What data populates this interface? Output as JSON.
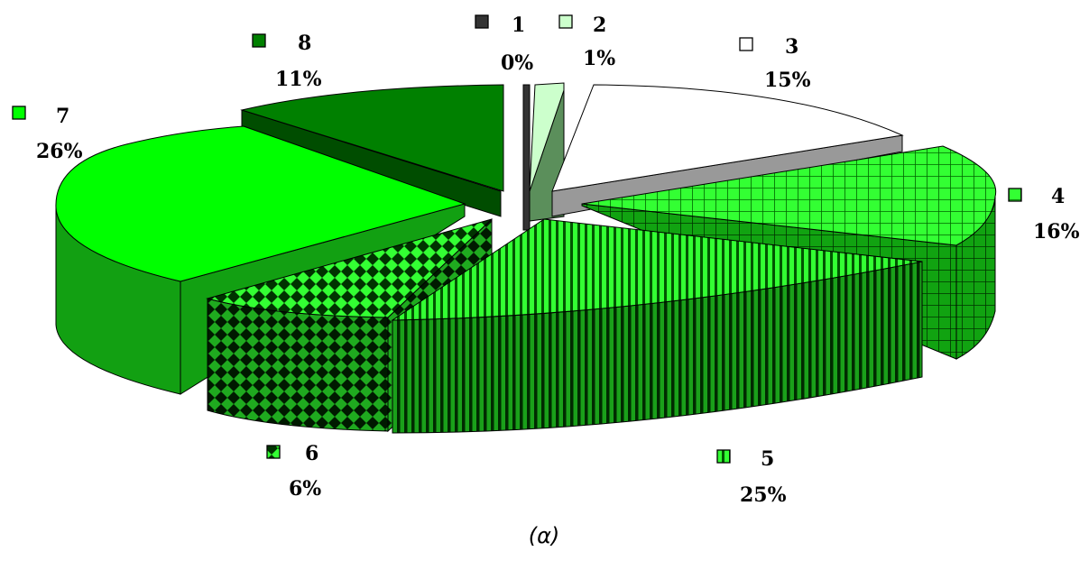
{
  "chart_data": {
    "type": "pie",
    "style": "3d-exploded",
    "caption": "(α)",
    "slices": [
      {
        "name": "1",
        "value": 0,
        "label": "0%",
        "color": "#333333",
        "pattern": "solid"
      },
      {
        "name": "2",
        "value": 1,
        "label": "1%",
        "color": "#ccffcc",
        "pattern": "solid"
      },
      {
        "name": "3",
        "value": 15,
        "label": "15%",
        "color": "#ffffff",
        "pattern": "solid"
      },
      {
        "name": "4",
        "value": 16,
        "label": "16%",
        "color": "#33ff33",
        "pattern": "grid"
      },
      {
        "name": "5",
        "value": 25,
        "label": "25%",
        "color": "#33ff33",
        "pattern": "vertical-stripes"
      },
      {
        "name": "6",
        "value": 6,
        "label": "6%",
        "color": "#33ff33",
        "pattern": "diamonds"
      },
      {
        "name": "7",
        "value": 26,
        "label": "26%",
        "color": "#00ff00",
        "pattern": "solid"
      },
      {
        "name": "8",
        "value": 11,
        "label": "11%",
        "color": "#008000",
        "pattern": "solid"
      }
    ]
  }
}
